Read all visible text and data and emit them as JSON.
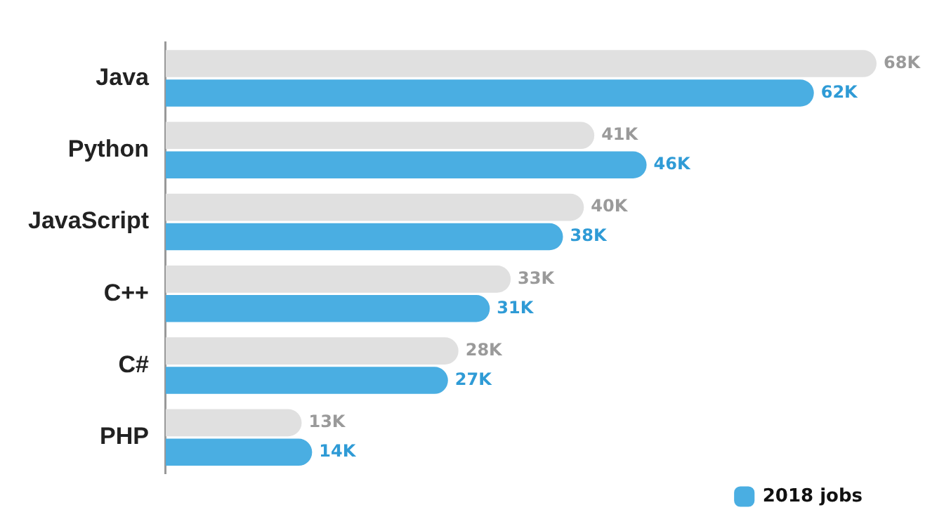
{
  "chart_data": {
    "type": "bar",
    "orientation": "horizontal",
    "categories": [
      "Java",
      "Python",
      "JavaScript",
      "C++",
      "C#",
      "PHP"
    ],
    "series": [
      {
        "color": "#e0e0e0",
        "values": [
          68,
          41,
          40,
          33,
          28,
          13
        ],
        "value_labels": [
          "68K",
          "41K",
          "40K",
          "33K",
          "28K",
          "13K"
        ]
      },
      {
        "name": "2018 jobs",
        "color": "#4aaee2",
        "values": [
          62,
          46,
          38,
          31,
          27,
          14
        ],
        "value_labels": [
          "62K",
          "46K",
          "38K",
          "31K",
          "27K",
          "14K"
        ]
      }
    ],
    "legend": "bottom right",
    "grid": false
  }
}
